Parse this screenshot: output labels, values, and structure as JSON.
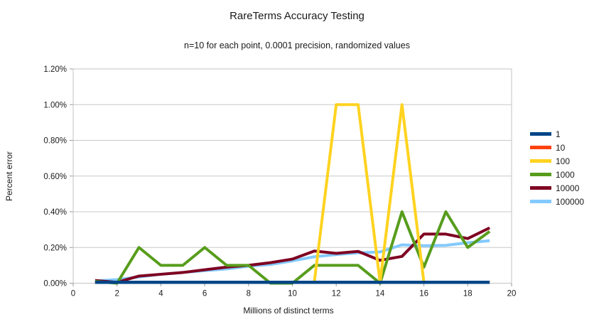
{
  "chart_data": {
    "type": "line",
    "title": "RareTerms Accuracy Testing",
    "subtitle": "n=10 for each point, 0.0001 precision, randomized values",
    "xlabel": "Millions of distinct terms",
    "ylabel": "Percent error",
    "xlim": [
      0,
      20
    ],
    "ylim_percent": [
      0.0,
      1.2
    ],
    "x_ticks": [
      0,
      2,
      4,
      6,
      8,
      10,
      12,
      14,
      16,
      18,
      20
    ],
    "y_ticks_percent": [
      0.0,
      0.2,
      0.4,
      0.6,
      0.8,
      1.0,
      1.2
    ],
    "y_tick_labels": [
      "0.00%",
      "0.20%",
      "0.40%",
      "0.60%",
      "0.80%",
      "1.00%",
      "1.20%"
    ],
    "grid": "horizontal",
    "legend_position": "right",
    "plot_border_color": "#c3c3c3",
    "gridline_color": "#c8c8c8",
    "tick_color": "#9a9a9a",
    "x": [
      1,
      2,
      3,
      4,
      5,
      6,
      7,
      8,
      9,
      10,
      11,
      12,
      13,
      14,
      15,
      16,
      17,
      18,
      19
    ],
    "series": [
      {
        "name": "1",
        "color": "#004586",
        "values_percent": [
          0.005,
          0.005,
          0.005,
          0.005,
          0.005,
          0.005,
          0.005,
          0.005,
          0.005,
          0.005,
          0.005,
          0.005,
          0.005,
          0.005,
          0.005,
          0.005,
          0.005,
          0.005,
          0.005
        ]
      },
      {
        "name": "10",
        "color": "#ff420e",
        "values_percent": [
          0.005,
          0.005,
          0.005,
          0.005,
          0.005,
          0.005,
          0.005,
          0.005,
          0.005,
          0.005,
          0.005,
          0.005,
          0.005,
          0.005,
          0.005,
          0.005,
          0.005,
          0.005,
          0.005
        ]
      },
      {
        "name": "100",
        "color": "#ffd320",
        "values_percent": [
          0.005,
          0.005,
          0.005,
          0.005,
          0.005,
          0.005,
          0.005,
          0.005,
          0.005,
          0.005,
          0.005,
          1.0,
          1.0,
          0.005,
          1.0,
          0.005,
          0.005,
          0.005,
          0.005
        ]
      },
      {
        "name": "1000",
        "color": "#579d1c",
        "values_percent": [
          0.01,
          0.0,
          0.2,
          0.1,
          0.1,
          0.2,
          0.1,
          0.1,
          0.0,
          0.0,
          0.1,
          0.1,
          0.1,
          0.0,
          0.4,
          0.09,
          0.4,
          0.2,
          0.29
        ]
      },
      {
        "name": "10000",
        "color": "#7e0021",
        "values_percent": [
          0.015,
          0.005,
          0.04,
          0.05,
          0.06,
          0.075,
          0.09,
          0.1,
          0.115,
          0.135,
          0.18,
          0.167,
          0.178,
          0.128,
          0.15,
          0.275,
          0.275,
          0.25,
          0.31
        ]
      },
      {
        "name": "100000",
        "color": "#83caff",
        "values_percent": [
          0.013,
          0.02,
          0.035,
          0.05,
          0.06,
          0.07,
          0.08,
          0.095,
          0.105,
          0.125,
          0.148,
          0.16,
          0.17,
          0.175,
          0.215,
          0.21,
          0.212,
          0.227,
          0.238
        ]
      }
    ]
  }
}
